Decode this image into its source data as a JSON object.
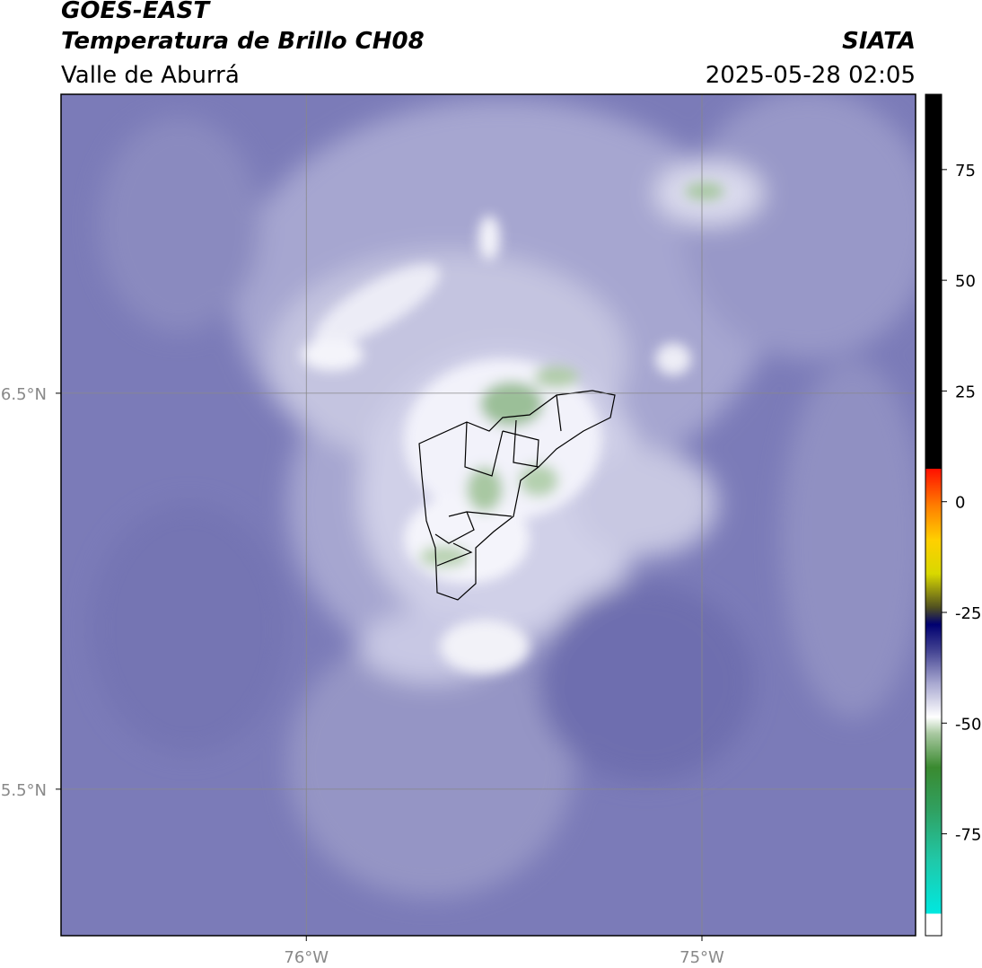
{
  "header": {
    "title": "GOES-EAST",
    "subtitle": "Temperatura de Brillo CH08",
    "region": "Valle de Aburrá",
    "source": "SIATA",
    "datetime": "2025-05-28 02:05"
  },
  "map": {
    "xlim": [
      -76.62,
      -74.46
    ],
    "ylim": [
      5.13,
      7.255
    ],
    "xticks": [
      {
        "value": -76,
        "label": "76°W"
      },
      {
        "value": -75,
        "label": "75°W"
      }
    ],
    "yticks": [
      {
        "value": 6.5,
        "label": "6.5°N"
      },
      {
        "value": 5.5,
        "label": "5.5°N"
      }
    ],
    "grid": true
  },
  "colorbar": {
    "lim": [
      -98,
      92
    ],
    "ticks": [
      75,
      50,
      25,
      0,
      -25,
      -50,
      -75
    ]
  }
}
